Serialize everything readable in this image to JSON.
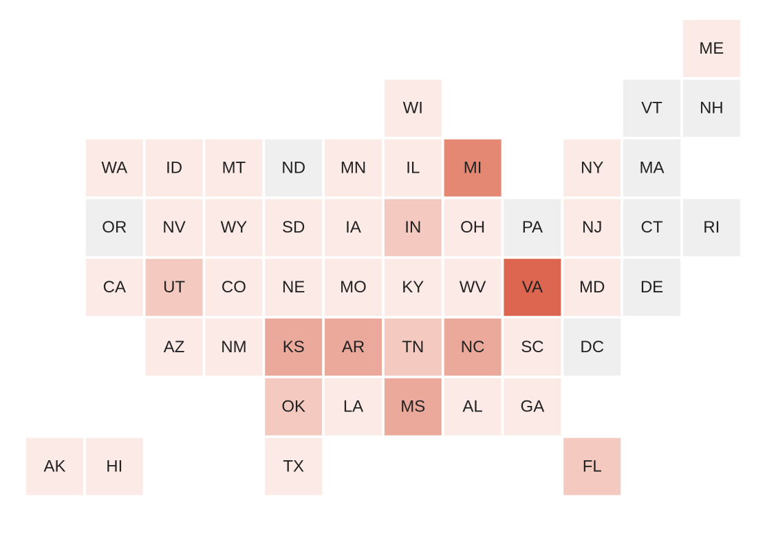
{
  "rows": [
    [
      null,
      null,
      null,
      null,
      null,
      null,
      null,
      null,
      null,
      null,
      null,
      {
        "label": "ME",
        "color": "#fbeae6"
      }
    ],
    [
      null,
      null,
      null,
      null,
      null,
      null,
      {
        "label": "WI",
        "color": "#fbeae6"
      },
      null,
      null,
      null,
      {
        "label": "VT",
        "color": "#efefef"
      },
      {
        "label": "NH",
        "color": "#efefef"
      }
    ],
    [
      null,
      {
        "label": "WA",
        "color": "#fbeae6"
      },
      {
        "label": "ID",
        "color": "#fbeae6"
      },
      {
        "label": "MT",
        "color": "#fbeae6"
      },
      {
        "label": "ND",
        "color": "#efefef"
      },
      {
        "label": "MN",
        "color": "#fbeae6"
      },
      {
        "label": "IL",
        "color": "#fbeae6"
      },
      {
        "label": "MI",
        "color": "#e48873"
      },
      null,
      {
        "label": "NY",
        "color": "#fbeae6"
      },
      {
        "label": "MA",
        "color": "#efefef"
      },
      null
    ],
    [
      null,
      {
        "label": "OR",
        "color": "#efefef"
      },
      {
        "label": "NV",
        "color": "#fbeae6"
      },
      {
        "label": "WY",
        "color": "#fbeae6"
      },
      {
        "label": "SD",
        "color": "#fbeae6"
      },
      {
        "label": "IA",
        "color": "#fbeae6"
      },
      {
        "label": "IN",
        "color": "#f3c9c0"
      },
      {
        "label": "OH",
        "color": "#fbeae6"
      },
      {
        "label": "PA",
        "color": "#efefef"
      },
      {
        "label": "NJ",
        "color": "#fbeae6"
      },
      {
        "label": "CT",
        "color": "#efefef"
      },
      {
        "label": "RI",
        "color": "#efefef"
      }
    ],
    [
      null,
      {
        "label": "CA",
        "color": "#fbeae6"
      },
      {
        "label": "UT",
        "color": "#f3c9c0"
      },
      {
        "label": "CO",
        "color": "#fbeae6"
      },
      {
        "label": "NE",
        "color": "#fbeae6"
      },
      {
        "label": "MO",
        "color": "#fbeae6"
      },
      {
        "label": "KY",
        "color": "#fbeae6"
      },
      {
        "label": "WV",
        "color": "#fbeae6"
      },
      {
        "label": "VA",
        "color": "#dd6650"
      },
      {
        "label": "MD",
        "color": "#fbeae6"
      },
      {
        "label": "DE",
        "color": "#efefef"
      },
      null
    ],
    [
      null,
      null,
      {
        "label": "AZ",
        "color": "#fbeae6"
      },
      {
        "label": "NM",
        "color": "#fbeae6"
      },
      {
        "label": "KS",
        "color": "#eba99c"
      },
      {
        "label": "AR",
        "color": "#eba99c"
      },
      {
        "label": "TN",
        "color": "#f3c9c0"
      },
      {
        "label": "NC",
        "color": "#eba99c"
      },
      {
        "label": "SC",
        "color": "#fbeae6"
      },
      {
        "label": "DC",
        "color": "#efefef"
      },
      null,
      null
    ],
    [
      null,
      null,
      null,
      null,
      {
        "label": "OK",
        "color": "#f3c9c0"
      },
      {
        "label": "LA",
        "color": "#fbeae6"
      },
      {
        "label": "MS",
        "color": "#eba99c"
      },
      {
        "label": "AL",
        "color": "#fbeae6"
      },
      {
        "label": "GA",
        "color": "#fbeae6"
      },
      null,
      null,
      null
    ],
    [
      {
        "label": "AK",
        "color": "#fbeae6"
      },
      {
        "label": "HI",
        "color": "#fbeae6"
      },
      null,
      null,
      {
        "label": "TX",
        "color": "#fbeae6"
      },
      null,
      null,
      null,
      null,
      {
        "label": "FL",
        "color": "#f3c9c0"
      },
      null,
      null
    ]
  ]
}
